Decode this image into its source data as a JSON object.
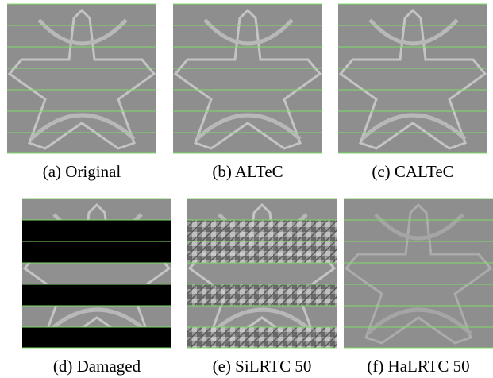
{
  "figure": {
    "panels": [
      {
        "caption": "(a) Original"
      },
      {
        "caption": "(b) ALTeC"
      },
      {
        "caption": "(c) CALTeC"
      },
      {
        "caption": "(d) Damaged"
      },
      {
        "caption": "(e) SiLRTC 50"
      },
      {
        "caption": "(f) HaLRTC 50"
      }
    ]
  }
}
